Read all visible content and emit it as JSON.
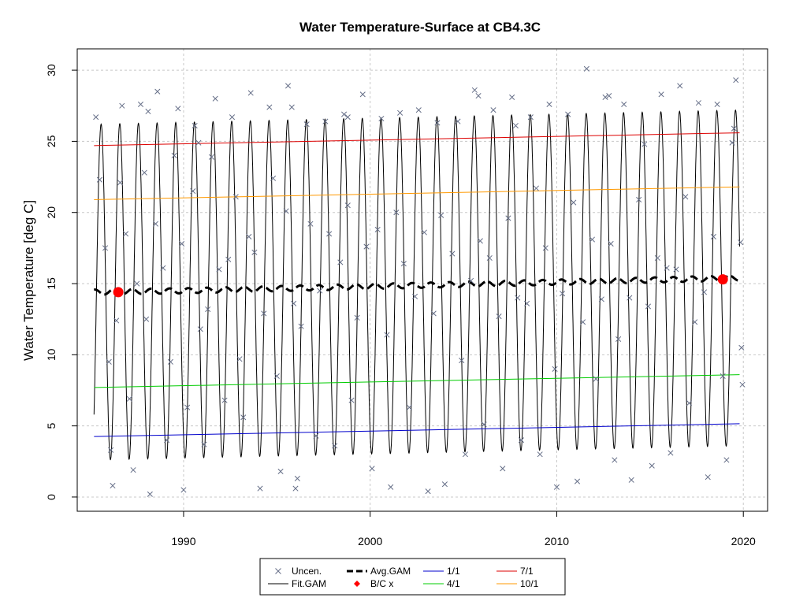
{
  "chart_data": {
    "type": "line",
    "title": "Water Temperature-Surface at CB4.3C",
    "xlabel": "",
    "ylabel": "Water Temperature [deg C]",
    "xlim": [
      1984.3,
      2021.3
    ],
    "ylim": [
      -1.0,
      31.5
    ],
    "x_ticks": [
      1990,
      2000,
      2010,
      2020
    ],
    "y_ticks": [
      0,
      5,
      10,
      15,
      20,
      25,
      30
    ],
    "grid": true,
    "legend_position": "bottom",
    "colors": {
      "uncen": "#666f88",
      "fit_gam": "#000000",
      "avg_gam": "#000000",
      "bc": "#ff0000",
      "jan1": "#0000cc",
      "apr1": "#00cc00",
      "jul1": "#dd0000",
      "oct1": "#ff9900",
      "grid": "#c8c8c8"
    },
    "legend": [
      {
        "label": "Uncen.",
        "symbol": "x",
        "color": "#666f88"
      },
      {
        "label": "Fit.GAM",
        "symbol": "line",
        "color": "#000000"
      },
      {
        "label": "Avg.GAM",
        "symbol": "dashed",
        "color": "#000000"
      },
      {
        "label": "B/C x",
        "symbol": "diamond",
        "color": "#ff0000"
      },
      {
        "label": "1/1",
        "symbol": "line",
        "color": "#0000cc"
      },
      {
        "label": "4/1",
        "symbol": "line",
        "color": "#00cc00"
      },
      {
        "label": "7/1",
        "symbol": "line",
        "color": "#dd0000"
      },
      {
        "label": "10/1",
        "symbol": "line",
        "color": "#ff9900"
      }
    ],
    "series": [
      {
        "name": "Fit.GAM",
        "kind": "seasonal",
        "x_range": [
          1985.2,
          2019.8
        ],
        "mean": [
          14.4,
          15.4
        ],
        "amplitude": 11.8,
        "peak_phase": 0.58
      },
      {
        "name": "Avg.GAM",
        "kind": "dashed",
        "x": [
          1985.2,
          1990,
          1995,
          2000,
          2005,
          2010,
          2015,
          2019.8
        ],
        "y": [
          14.4,
          14.5,
          14.65,
          14.8,
          14.95,
          15.1,
          15.25,
          15.4
        ]
      },
      {
        "name": "7/1",
        "x": [
          1985.2,
          2019.8
        ],
        "y": [
          24.7,
          25.6
        ]
      },
      {
        "name": "10/1",
        "x": [
          1985.2,
          2019.8
        ],
        "y": [
          20.9,
          21.8
        ]
      },
      {
        "name": "4/1",
        "x": [
          1985.2,
          2019.8
        ],
        "y": [
          7.7,
          8.6
        ]
      },
      {
        "name": "1/1",
        "x": [
          1985.2,
          2019.8
        ],
        "y": [
          4.25,
          5.15
        ]
      }
    ],
    "bc_points": [
      {
        "x": 1986.5,
        "y": 14.4
      },
      {
        "x": 2018.9,
        "y": 15.3
      }
    ],
    "uncen_points": [
      {
        "x": 1985.3,
        "y": 26.7
      },
      {
        "x": 1985.5,
        "y": 22.3
      },
      {
        "x": 1985.8,
        "y": 17.5
      },
      {
        "x": 1986.0,
        "y": 9.5
      },
      {
        "x": 1986.1,
        "y": 3.3
      },
      {
        "x": 1986.2,
        "y": 0.8
      },
      {
        "x": 1986.4,
        "y": 12.4
      },
      {
        "x": 1986.6,
        "y": 22.1
      },
      {
        "x": 1986.7,
        "y": 27.5
      },
      {
        "x": 1986.9,
        "y": 18.5
      },
      {
        "x": 1987.1,
        "y": 6.9
      },
      {
        "x": 1987.3,
        "y": 1.9
      },
      {
        "x": 1987.5,
        "y": 15.0
      },
      {
        "x": 1987.7,
        "y": 27.6
      },
      {
        "x": 1987.9,
        "y": 22.8
      },
      {
        "x": 1988.0,
        "y": 12.5
      },
      {
        "x": 1988.2,
        "y": 0.2
      },
      {
        "x": 1988.5,
        "y": 19.2
      },
      {
        "x": 1988.6,
        "y": 28.5
      },
      {
        "x": 1988.9,
        "y": 16.1
      },
      {
        "x": 1989.1,
        "y": 4.0
      },
      {
        "x": 1989.3,
        "y": 9.5
      },
      {
        "x": 1989.5,
        "y": 24.0
      },
      {
        "x": 1989.7,
        "y": 27.3
      },
      {
        "x": 1989.9,
        "y": 17.8
      },
      {
        "x": 1990.0,
        "y": 0.5
      },
      {
        "x": 1990.2,
        "y": 6.3
      },
      {
        "x": 1990.5,
        "y": 21.5
      },
      {
        "x": 1990.6,
        "y": 26.1
      },
      {
        "x": 1990.9,
        "y": 11.8
      },
      {
        "x": 1991.1,
        "y": 3.7
      },
      {
        "x": 1991.3,
        "y": 13.2
      },
      {
        "x": 1991.5,
        "y": 23.9
      },
      {
        "x": 1991.7,
        "y": 28.0
      },
      {
        "x": 1991.9,
        "y": 16.0
      },
      {
        "x": 1992.2,
        "y": 6.8
      },
      {
        "x": 1992.4,
        "y": 16.7
      },
      {
        "x": 1992.6,
        "y": 26.7
      },
      {
        "x": 1992.8,
        "y": 21.1
      },
      {
        "x": 1993.0,
        "y": 9.7
      },
      {
        "x": 1993.2,
        "y": 5.6
      },
      {
        "x": 1993.5,
        "y": 18.3
      },
      {
        "x": 1993.6,
        "y": 28.4
      },
      {
        "x": 1993.8,
        "y": 17.2
      },
      {
        "x": 1994.1,
        "y": 0.6
      },
      {
        "x": 1994.3,
        "y": 12.9
      },
      {
        "x": 1994.6,
        "y": 27.4
      },
      {
        "x": 1994.8,
        "y": 22.4
      },
      {
        "x": 1995.0,
        "y": 8.5
      },
      {
        "x": 1995.2,
        "y": 1.8
      },
      {
        "x": 1995.5,
        "y": 20.1
      },
      {
        "x": 1995.6,
        "y": 28.9
      },
      {
        "x": 1995.9,
        "y": 13.6
      },
      {
        "x": 1996.0,
        "y": 0.6
      },
      {
        "x": 1996.1,
        "y": 1.3
      },
      {
        "x": 1996.3,
        "y": 12.0
      },
      {
        "x": 1996.6,
        "y": 26.2
      },
      {
        "x": 1996.8,
        "y": 19.2
      },
      {
        "x": 1997.1,
        "y": 4.3
      },
      {
        "x": 1997.3,
        "y": 14.5
      },
      {
        "x": 1997.6,
        "y": 26.4
      },
      {
        "x": 1997.8,
        "y": 18.5
      },
      {
        "x": 1998.1,
        "y": 3.6
      },
      {
        "x": 1998.4,
        "y": 16.5
      },
      {
        "x": 1998.6,
        "y": 26.9
      },
      {
        "x": 1998.8,
        "y": 20.5
      },
      {
        "x": 1999.0,
        "y": 6.8
      },
      {
        "x": 1999.3,
        "y": 12.6
      },
      {
        "x": 1999.6,
        "y": 28.3
      },
      {
        "x": 1999.8,
        "y": 17.6
      },
      {
        "x": 2000.1,
        "y": 2.0
      },
      {
        "x": 2000.4,
        "y": 18.8
      },
      {
        "x": 2000.6,
        "y": 26.6
      },
      {
        "x": 2000.9,
        "y": 11.4
      },
      {
        "x": 2001.1,
        "y": 0.7
      },
      {
        "x": 2001.4,
        "y": 20.0
      },
      {
        "x": 2001.6,
        "y": 27.0
      },
      {
        "x": 2001.8,
        "y": 16.4
      },
      {
        "x": 2002.1,
        "y": 6.3
      },
      {
        "x": 2002.4,
        "y": 14.1
      },
      {
        "x": 2002.6,
        "y": 27.2
      },
      {
        "x": 2002.9,
        "y": 18.6
      },
      {
        "x": 2003.1,
        "y": 0.4
      },
      {
        "x": 2003.4,
        "y": 12.9
      },
      {
        "x": 2003.6,
        "y": 26.3
      },
      {
        "x": 2003.8,
        "y": 19.8
      },
      {
        "x": 2004.0,
        "y": 0.9
      },
      {
        "x": 2004.4,
        "y": 17.1
      },
      {
        "x": 2004.7,
        "y": 26.4
      },
      {
        "x": 2004.9,
        "y": 9.6
      },
      {
        "x": 2005.1,
        "y": 3.0
      },
      {
        "x": 2005.4,
        "y": 15.2
      },
      {
        "x": 2005.6,
        "y": 28.6
      },
      {
        "x": 2005.9,
        "y": 18.0
      },
      {
        "x": 2006.1,
        "y": 5.1
      },
      {
        "x": 2006.4,
        "y": 16.8
      },
      {
        "x": 2006.6,
        "y": 27.2
      },
      {
        "x": 2006.9,
        "y": 12.7
      },
      {
        "x": 2007.1,
        "y": 2.0
      },
      {
        "x": 2007.4,
        "y": 19.6
      },
      {
        "x": 2007.6,
        "y": 28.1
      },
      {
        "x": 2007.9,
        "y": 14.0
      },
      {
        "x": 2008.1,
        "y": 4.0
      },
      {
        "x": 2008.4,
        "y": 13.6
      },
      {
        "x": 2008.6,
        "y": 26.7
      },
      {
        "x": 2008.9,
        "y": 21.7
      },
      {
        "x": 2009.1,
        "y": 3.0
      },
      {
        "x": 2009.4,
        "y": 17.5
      },
      {
        "x": 2009.6,
        "y": 27.6
      },
      {
        "x": 2009.9,
        "y": 9.0
      },
      {
        "x": 2010.0,
        "y": 0.7
      },
      {
        "x": 2010.3,
        "y": 14.3
      },
      {
        "x": 2010.6,
        "y": 26.9
      },
      {
        "x": 2010.9,
        "y": 20.7
      },
      {
        "x": 2011.1,
        "y": 1.1
      },
      {
        "x": 2011.4,
        "y": 12.3
      },
      {
        "x": 2011.6,
        "y": 30.1
      },
      {
        "x": 2011.9,
        "y": 18.1
      },
      {
        "x": 2012.1,
        "y": 8.3
      },
      {
        "x": 2012.4,
        "y": 13.9
      },
      {
        "x": 2012.6,
        "y": 28.1
      },
      {
        "x": 2012.9,
        "y": 17.8
      },
      {
        "x": 2013.1,
        "y": 2.6
      },
      {
        "x": 2013.3,
        "y": 11.1
      },
      {
        "x": 2013.6,
        "y": 27.6
      },
      {
        "x": 2013.9,
        "y": 14.0
      },
      {
        "x": 2014.0,
        "y": 1.2
      },
      {
        "x": 2014.4,
        "y": 20.9
      },
      {
        "x": 2014.7,
        "y": 24.8
      },
      {
        "x": 2014.9,
        "y": 13.4
      },
      {
        "x": 2015.1,
        "y": 2.2
      },
      {
        "x": 2015.4,
        "y": 16.8
      },
      {
        "x": 2015.6,
        "y": 28.3
      },
      {
        "x": 2015.9,
        "y": 16.1
      },
      {
        "x": 2016.1,
        "y": 3.1
      },
      {
        "x": 2016.4,
        "y": 16.0
      },
      {
        "x": 2016.6,
        "y": 28.9
      },
      {
        "x": 2016.9,
        "y": 21.1
      },
      {
        "x": 2017.1,
        "y": 6.6
      },
      {
        "x": 2017.4,
        "y": 12.3
      },
      {
        "x": 2017.6,
        "y": 27.7
      },
      {
        "x": 2017.9,
        "y": 14.4
      },
      {
        "x": 2018.1,
        "y": 1.4
      },
      {
        "x": 2018.4,
        "y": 18.3
      },
      {
        "x": 2018.6,
        "y": 27.6
      },
      {
        "x": 2018.9,
        "y": 8.5
      },
      {
        "x": 2019.1,
        "y": 2.6
      },
      {
        "x": 2019.4,
        "y": 24.9
      },
      {
        "x": 2019.6,
        "y": 29.3
      },
      {
        "x": 2019.9,
        "y": 10.5
      },
      {
        "x": 2019.95,
        "y": 7.9
      },
      {
        "x": 2019.85,
        "y": 17.9
      },
      {
        "x": 2019.5,
        "y": 25.9
      },
      {
        "x": 2005.8,
        "y": 28.2
      },
      {
        "x": 1998.8,
        "y": 26.7
      },
      {
        "x": 1988.1,
        "y": 27.1
      },
      {
        "x": 1995.8,
        "y": 27.4
      },
      {
        "x": 2012.8,
        "y": 28.2
      },
      {
        "x": 2007.8,
        "y": 26.1
      },
      {
        "x": 1990.8,
        "y": 24.9
      }
    ]
  }
}
